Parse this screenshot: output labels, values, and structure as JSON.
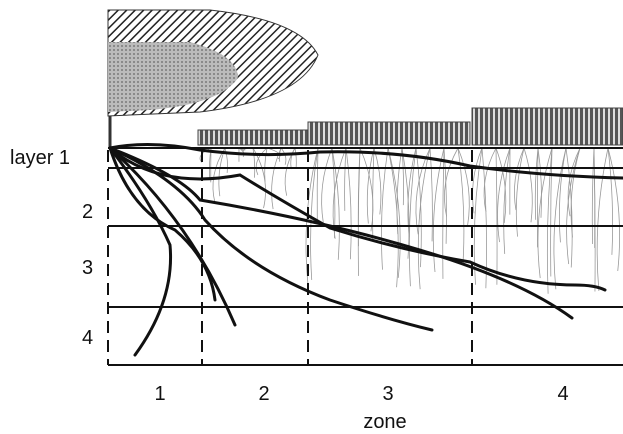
{
  "layers": [
    "layer 1",
    "2",
    "3",
    "4"
  ],
  "zones": [
    "1",
    "2",
    "3",
    "4"
  ],
  "axis_label": "zone"
}
